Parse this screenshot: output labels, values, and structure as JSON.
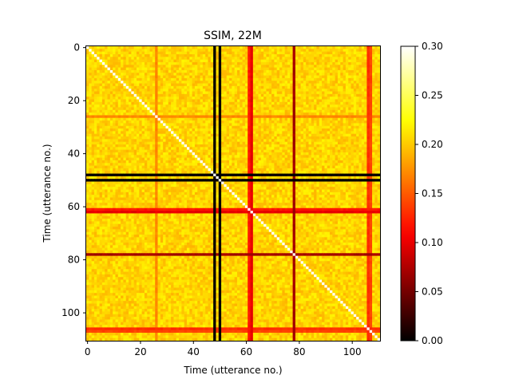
{
  "chart_data": {
    "type": "heatmap",
    "title": "SSIM, 22M",
    "xlabel": "Time (utterance no.)",
    "ylabel": "Time (utterance no.)",
    "n": 111,
    "x_ticks": [
      0,
      20,
      40,
      60,
      80,
      100
    ],
    "y_ticks": [
      0,
      20,
      40,
      60,
      80,
      100
    ],
    "colormap": "hot",
    "color_range": [
      0.0,
      0.3
    ],
    "colorbar_ticks": [
      "0.00",
      "0.05",
      "0.10",
      "0.15",
      "0.20",
      "0.25",
      "0.30"
    ],
    "baseline_value": 0.205,
    "diagonal_value": 0.3,
    "anomalous_rows": [
      {
        "index": 26,
        "value": 0.17
      },
      {
        "index": 48,
        "value": 0.0
      },
      {
        "index": 50,
        "value": 0.0
      },
      {
        "index": 61,
        "value": 0.12
      },
      {
        "index": 62,
        "value": 0.1
      },
      {
        "index": 78,
        "value": 0.07
      },
      {
        "index": 106,
        "value": 0.13
      },
      {
        "index": 107,
        "value": 0.14
      }
    ],
    "grid": false
  }
}
